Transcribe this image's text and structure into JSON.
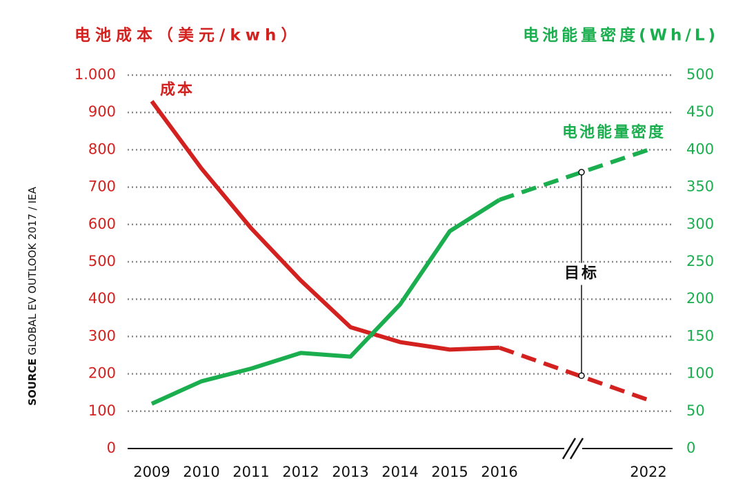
{
  "chart_data": {
    "type": "line",
    "y_title": "电池成本（美元/kwh）",
    "y2_title": "电池能量密度(Wh/L)",
    "source_label": "SOURCE",
    "source": "GLOBAL EV OUTLOOK 2017 / IEA",
    "categories": [
      "2009",
      "2010",
      "2011",
      "2012",
      "2013",
      "2014",
      "2015",
      "2016",
      null,
      null,
      "2022"
    ],
    "projection_start": 7,
    "series": [
      {
        "name": "成本",
        "color": "#d3211f",
        "values": [
          930,
          750,
          590,
          450,
          325,
          285,
          265,
          270,
          null,
          null,
          130
        ]
      },
      {
        "name": "电池能量密度",
        "color": "#1bae4f",
        "axis": "y2",
        "values": [
          60,
          90,
          107,
          128,
          123,
          193,
          291,
          333,
          null,
          null,
          400
        ]
      }
    ],
    "annotation": {
      "label": "目标",
      "cost": 195,
      "density": 370
    },
    "ylim": [
      0,
      1000
    ],
    "yticks": [
      0,
      100,
      200,
      300,
      400,
      500,
      600,
      700,
      800,
      900,
      {
        "value": 1000,
        "label": "1.000"
      }
    ],
    "y2lim": [
      0,
      500
    ],
    "y2ticks": [
      0,
      50,
      100,
      150,
      200,
      250,
      300,
      350,
      400,
      450,
      500
    ],
    "grid": true
  }
}
